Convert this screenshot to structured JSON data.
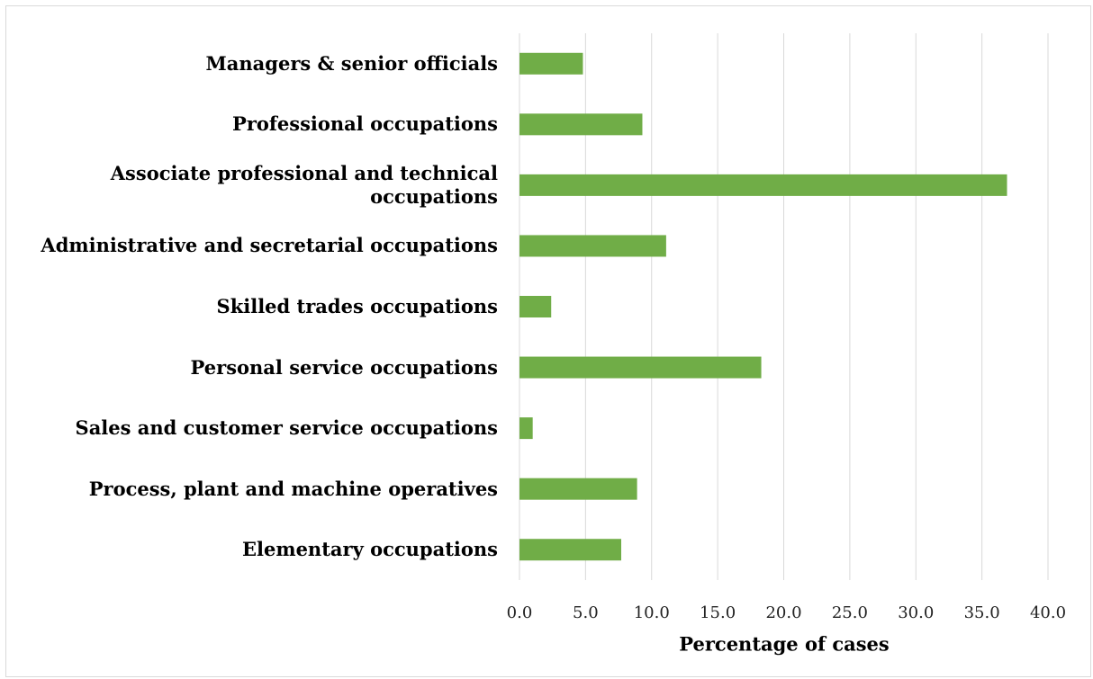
{
  "chart_data": {
    "type": "bar",
    "orientation": "horizontal",
    "x_label": "Percentage of cases",
    "categories": [
      "Managers & senior officials",
      "Professional occupations",
      "Associate professional and technical occupations",
      "Administrative and secretarial occupations",
      "Skilled trades occupations",
      "Personal service occupations",
      "Sales and customer service occupations",
      "Process, plant and machine operatives",
      "Elementary occupations"
    ],
    "values": [
      4.8,
      9.3,
      36.9,
      11.1,
      2.4,
      18.3,
      1.0,
      8.9,
      7.7
    ],
    "color": "#70ad47",
    "xlim": [
      0,
      40
    ],
    "xticks": [
      {
        "value": 0,
        "label": "0.0"
      },
      {
        "value": 5,
        "label": "5.0"
      },
      {
        "value": 10,
        "label": "10.0"
      },
      {
        "value": 15,
        "label": "15.0"
      },
      {
        "value": 20,
        "label": "20.0"
      },
      {
        "value": 25,
        "label": "25.0"
      },
      {
        "value": 30,
        "label": "30.0"
      },
      {
        "value": 35,
        "label": "35.0"
      },
      {
        "value": 40,
        "label": "40.0"
      }
    ],
    "grid": true
  }
}
